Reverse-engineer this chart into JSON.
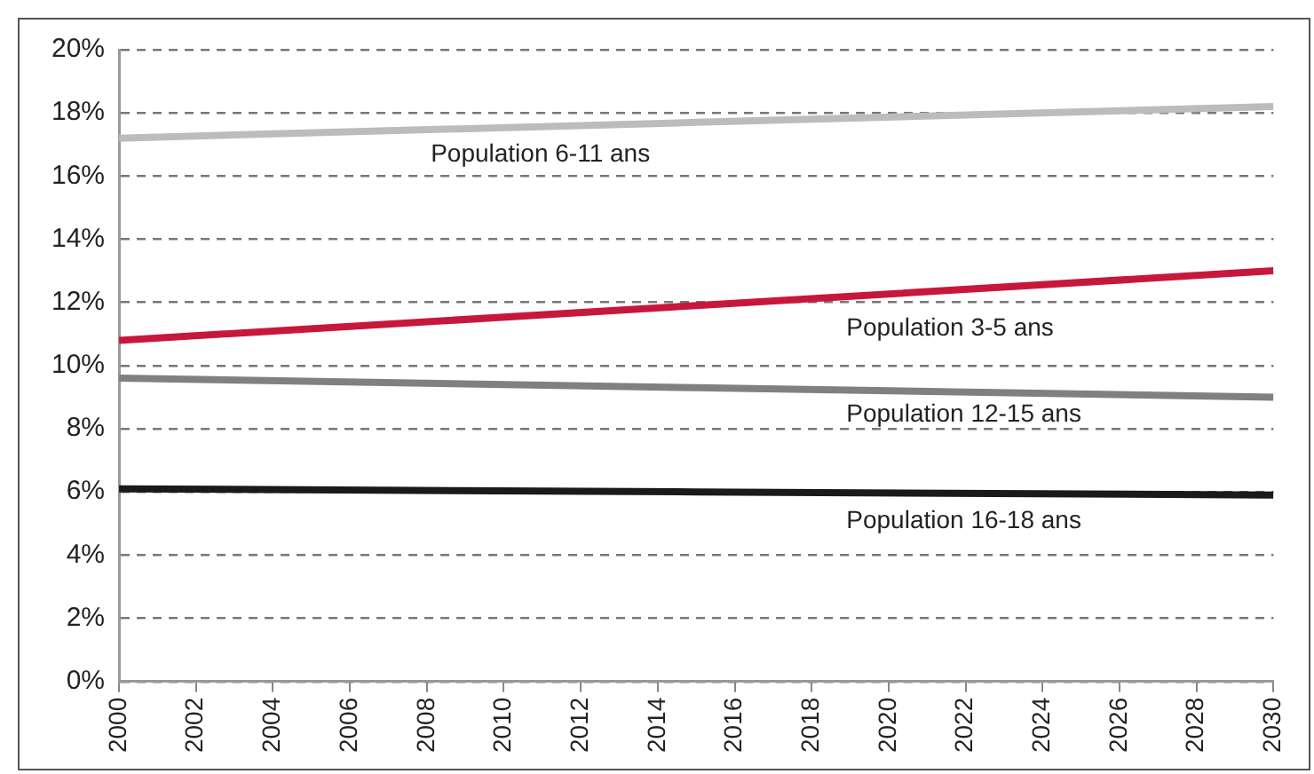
{
  "chart_data": {
    "type": "line",
    "xlim": [
      2000,
      2030
    ],
    "xticks": [
      2000,
      2002,
      2004,
      2006,
      2008,
      2010,
      2012,
      2014,
      2016,
      2018,
      2020,
      2022,
      2024,
      2026,
      2028,
      2030
    ],
    "ylim": [
      0,
      20
    ],
    "yticks": [
      {
        "value": 0,
        "label": "0%"
      },
      {
        "value": 2,
        "label": "2%"
      },
      {
        "value": 4,
        "label": "4%"
      },
      {
        "value": 6,
        "label": "6%"
      },
      {
        "value": 8,
        "label": "8%"
      },
      {
        "value": 10,
        "label": "10%"
      },
      {
        "value": 12,
        "label": "12%"
      },
      {
        "value": 14,
        "label": "14%"
      },
      {
        "value": 16,
        "label": "16%"
      },
      {
        "value": 18,
        "label": "18%"
      },
      {
        "value": 20,
        "label": "20%"
      }
    ],
    "grid": "y",
    "legend": false,
    "marker": "none",
    "line_style": "solid",
    "series": [
      {
        "name": "Population 6-11 ans",
        "color": "#bcbcbe",
        "x": [
          2000,
          2015,
          2030
        ],
        "values": [
          17.2,
          17.7,
          18.2
        ]
      },
      {
        "name": "Population 3-5 ans",
        "color": "#c8173c",
        "x": [
          2000,
          2015,
          2030
        ],
        "values": [
          10.8,
          11.9,
          13.0
        ]
      },
      {
        "name": "Population 12-15 ans",
        "color": "#808083",
        "x": [
          2000,
          2015,
          2030
        ],
        "values": [
          9.6,
          9.3,
          9.0
        ]
      },
      {
        "name": "Population 16-18 ans",
        "color": "#1a1a1a",
        "x": [
          2000,
          2015,
          2030
        ],
        "values": [
          6.1,
          6.0,
          5.9
        ]
      }
    ]
  }
}
